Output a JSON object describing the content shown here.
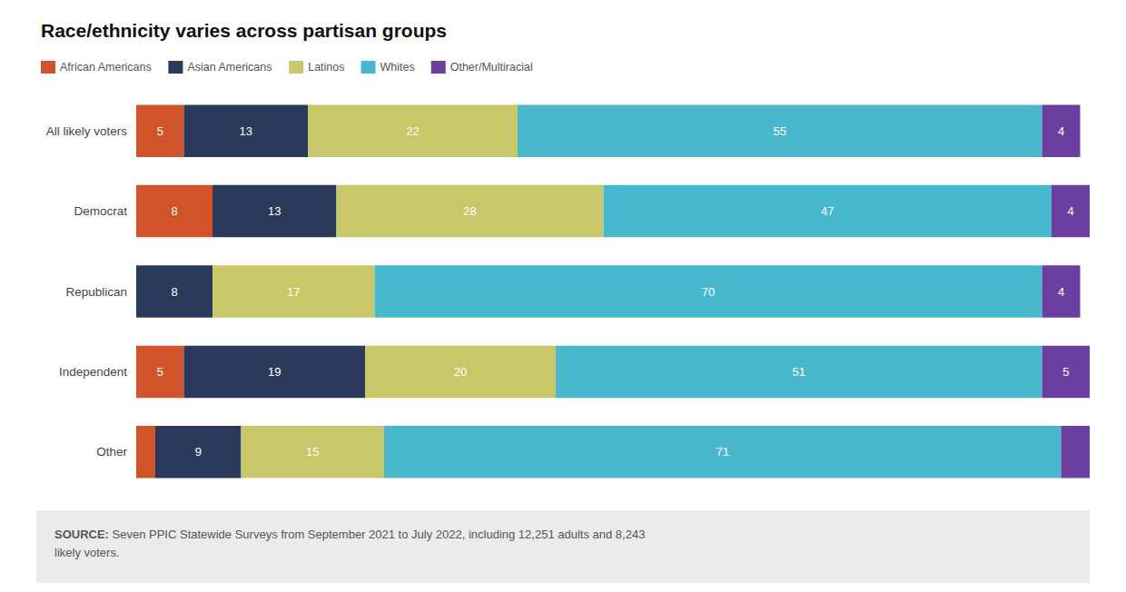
{
  "chart_data": {
    "type": "bar",
    "title": "Race/ethnicity varies across partisan groups",
    "orientation": "horizontal",
    "stacked": true,
    "categories": [
      "All likely voters",
      "Democrat",
      "Republican",
      "Independent",
      "Other"
    ],
    "series": [
      {
        "name": "African Americans",
        "color": "#D0532A",
        "values": [
          5,
          8,
          0,
          5,
          2
        ],
        "value_labels": [
          "5",
          "8",
          null,
          "5",
          null
        ]
      },
      {
        "name": "Asian Americans",
        "color": "#2B3A5A",
        "values": [
          13,
          13,
          8,
          19,
          9
        ],
        "value_labels": [
          "13",
          "13",
          "8",
          "19",
          "9"
        ]
      },
      {
        "name": "Latinos",
        "color": "#C8C76A",
        "values": [
          22,
          28,
          17,
          20,
          15
        ],
        "value_labels": [
          "22",
          "28",
          "17",
          "20",
          "15"
        ]
      },
      {
        "name": "Whites",
        "color": "#4AB8CC",
        "values": [
          55,
          47,
          70,
          51,
          71
        ],
        "value_labels": [
          "55",
          "47",
          "70",
          "51",
          "71"
        ]
      },
      {
        "name": "Other/Multiracial",
        "color": "#6B3FA0",
        "values": [
          4,
          4,
          4,
          5,
          3
        ],
        "value_labels": [
          "4",
          "4",
          "4",
          "5",
          null
        ]
      }
    ],
    "xlim": [
      0,
      100
    ],
    "data_labels": true,
    "tick_labels": "y",
    "grid": false,
    "legend": "upper left",
    "annotations": [
      "SOURCE:",
      " Seven PPIC Statewide Surveys from September 2021 to July 2022, including 12,251 adults and 8,243\nlikely voters."
    ]
  }
}
